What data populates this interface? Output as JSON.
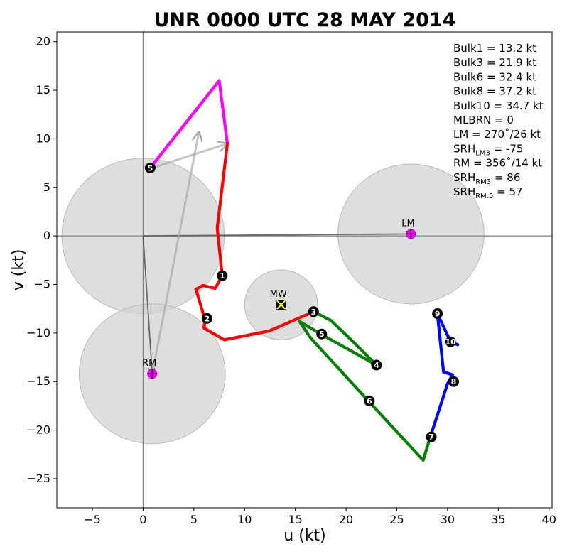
{
  "chart_data": {
    "type": "line",
    "title": "UNR 0000 UTC 28 MAY 2014",
    "xlabel": "u (kt)",
    "ylabel": "v (kt)",
    "xlim": [
      -8.5,
      40.3
    ],
    "ylim": [
      -28.0,
      21.0
    ],
    "xticks": [
      -5,
      0,
      5,
      10,
      15,
      20,
      25,
      30,
      35,
      40
    ],
    "yticks": [
      -25,
      -20,
      -15,
      -10,
      -5,
      0,
      5,
      10,
      15,
      20
    ],
    "grid": false,
    "series": [
      {
        "color": "#ff00ff",
        "points": [
          [
            0.7,
            7.0
          ],
          [
            7.5,
            16.0
          ],
          [
            8.3,
            9.5
          ]
        ]
      },
      {
        "color": "#ff0000",
        "points": [
          [
            8.3,
            9.5
          ],
          [
            7.3,
            0.8
          ],
          [
            7.8,
            -4.1
          ],
          [
            7.1,
            -5.4
          ],
          [
            5.9,
            -5.1
          ],
          [
            5.2,
            -5.5
          ],
          [
            6.1,
            -8.6
          ],
          [
            6.0,
            -9.5
          ],
          [
            8.0,
            -10.7
          ],
          [
            12.4,
            -9.8
          ],
          [
            16.8,
            -7.8
          ]
        ]
      },
      {
        "color": "#008000",
        "points": [
          [
            16.8,
            -7.8
          ],
          [
            18.5,
            -8.7
          ],
          [
            20.5,
            -10.7
          ],
          [
            23.0,
            -13.3
          ],
          [
            17.5,
            -10.1
          ],
          [
            15.4,
            -8.8
          ],
          [
            16.5,
            -10.5
          ],
          [
            22.2,
            -17.0
          ],
          [
            27.6,
            -23.1
          ],
          [
            28.3,
            -20.7
          ]
        ]
      },
      {
        "color": "#0000ff",
        "points": [
          [
            28.3,
            -20.7
          ],
          [
            29.2,
            -17.8
          ],
          [
            30.0,
            -15.2
          ],
          [
            30.5,
            -14.3
          ],
          [
            29.6,
            -14.0
          ],
          [
            29.0,
            -8.0
          ],
          [
            30.3,
            -10.9
          ],
          [
            31.0,
            -11.2
          ]
        ]
      }
    ],
    "height_markers": [
      {
        "label": "S",
        "x": 0.7,
        "y": 7.0
      },
      {
        "label": "1",
        "x": 7.8,
        "y": -4.1
      },
      {
        "label": "2",
        "x": 6.3,
        "y": -8.5
      },
      {
        "label": "3",
        "x": 16.8,
        "y": -7.8
      },
      {
        "label": "4",
        "x": 23.0,
        "y": -13.3
      },
      {
        "label": "5",
        "x": 17.6,
        "y": -10.1
      },
      {
        "label": "6",
        "x": 22.3,
        "y": -17.0
      },
      {
        "label": "7",
        "x": 28.4,
        "y": -20.7
      },
      {
        "label": "8",
        "x": 30.6,
        "y": -15.0
      },
      {
        "label": "9",
        "x": 29.0,
        "y": -8.0
      },
      {
        "label": "10",
        "x": 30.3,
        "y": -10.9
      }
    ],
    "circles": [
      {
        "cx": 0.0,
        "cy": 0.0,
        "r": 8.0
      },
      {
        "cx": 26.4,
        "cy": 0.2,
        "r": 7.2
      },
      {
        "cx": 0.9,
        "cy": -14.2,
        "r": 7.2
      },
      {
        "cx": 13.6,
        "cy": -7.1,
        "r": 3.6
      }
    ],
    "points": [
      {
        "label": "LM",
        "x": 26.4,
        "y": 0.2,
        "marker": "magenta-cross"
      },
      {
        "label": "RM",
        "x": 0.9,
        "y": -14.2,
        "marker": "magenta-cross"
      },
      {
        "label": "MW",
        "x": 13.6,
        "y": -7.1,
        "marker": "yellow-x-box"
      }
    ],
    "vectors": [
      {
        "from": [
          0,
          0
        ],
        "to": [
          26.4,
          0.2
        ],
        "color": "#555555",
        "opacity": 0.85
      },
      {
        "from": [
          0,
          0
        ],
        "to": [
          0.9,
          -14.2
        ],
        "color": "#555555",
        "opacity": 0.85
      },
      {
        "from": [
          0.9,
          -14.2
        ],
        "to": [
          5.5,
          10.7
        ],
        "color": "#aaaaaa",
        "opacity": 0.7
      },
      {
        "from": [
          0.9,
          7.0
        ],
        "to": [
          8.3,
          9.5
        ],
        "color": "#aaaaaa",
        "opacity": 0.7
      }
    ],
    "stats": [
      {
        "text": "Bulk1 = 13.2 kt"
      },
      {
        "text": "Bulk3 = 21.9 kt"
      },
      {
        "text": "Bulk6 = 32.4 kt"
      },
      {
        "text": "Bulk8 = 37.2 kt"
      },
      {
        "text": "Bulk10 = 34.7 kt"
      },
      {
        "text": "MLBRN = 0"
      },
      {
        "text": "LM = 270˚/26 kt"
      },
      {
        "text": "SRH",
        "sub": "LM3",
        "rest": " = -75"
      },
      {
        "text": "RM = 356˚/14 kt"
      },
      {
        "text": "SRH",
        "sub": "RM3",
        "rest": " = 86"
      },
      {
        "text": "SRH",
        "sub": "RM.5",
        "rest": " = 57"
      }
    ]
  }
}
